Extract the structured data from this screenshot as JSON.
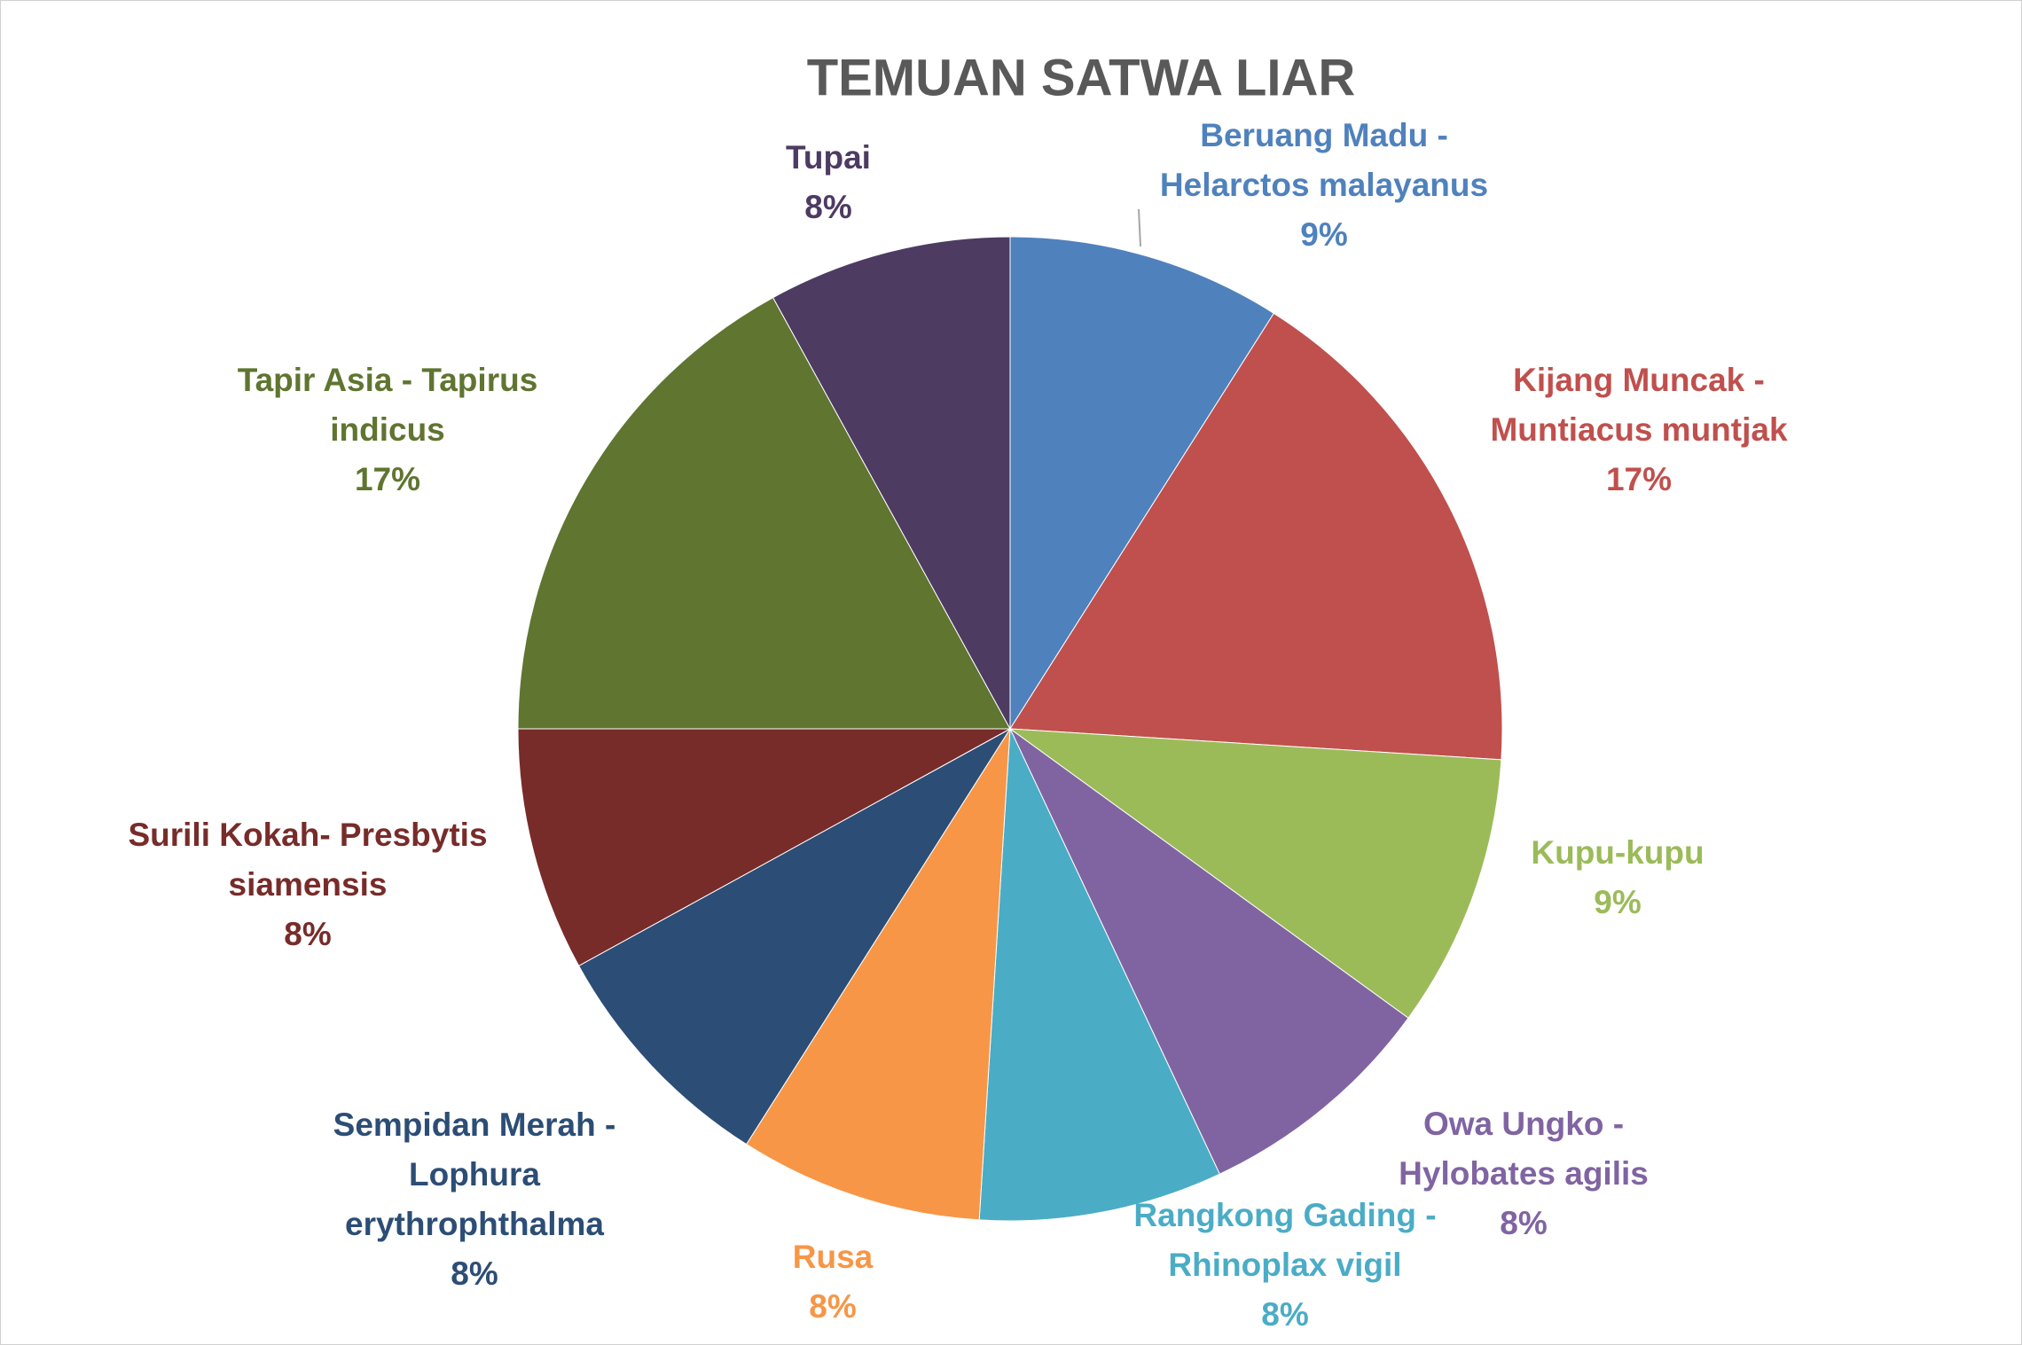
{
  "chart_data": {
    "type": "pie",
    "title": "TEMUAN SATWA LIAR",
    "categories": [
      "Beruang Madu - Helarctos malayanus",
      "Kijang Muncak - Muntiacus muntjak",
      "Kupu-kupu",
      "Owa Ungko - Hylobates agilis",
      "Rangkong Gading - Rhinoplax vigil",
      "Rusa",
      "Sempidan Merah - Lophura erythrophthalma",
      "Surili Kokah- Presbytis siamensis",
      "Tapir Asia - Tapirus indicus",
      "Tupai"
    ],
    "values": [
      9,
      17,
      9,
      8,
      8,
      8,
      8,
      8,
      17,
      8
    ],
    "value_labels": [
      "9%",
      "17%",
      "9%",
      "8%",
      "8%",
      "8%",
      "8%",
      "8%",
      "17%",
      "8%"
    ],
    "colors": [
      "#4f81bd",
      "#c0504d",
      "#9bbb59",
      "#8064a2",
      "#4bacc6",
      "#f79646",
      "#2c4d75",
      "#772c2a",
      "#5f7530",
      "#4d3b62"
    ]
  }
}
